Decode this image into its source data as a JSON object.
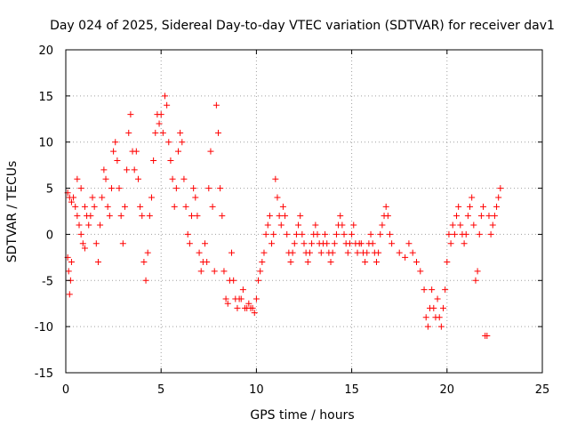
{
  "chart_data": {
    "type": "scatter",
    "title": "Day 024 of 2025, Sidereal Day-to-day VTEC variation (SDTVAR) for receiver dav1",
    "xlabel": "GPS time / hours",
    "ylabel": "SDTVAR / TECUs",
    "xlim": [
      0,
      25
    ],
    "ylim": [
      -15,
      20
    ],
    "xticks": [
      0,
      5,
      10,
      15,
      20,
      25
    ],
    "yticks": [
      -15,
      -10,
      -5,
      0,
      5,
      10,
      15,
      20
    ],
    "grid": true,
    "marker": "+",
    "color": "#ff0000",
    "series": [
      {
        "name": "SDTVAR",
        "points": [
          [
            0.1,
            -2.5
          ],
          [
            0.15,
            -4
          ],
          [
            0.2,
            -6.5
          ],
          [
            0.25,
            -5
          ],
          [
            0.3,
            -3
          ],
          [
            0.1,
            4.5
          ],
          [
            0.2,
            4
          ],
          [
            0.3,
            3.5
          ],
          [
            0.4,
            4
          ],
          [
            0.5,
            3
          ],
          [
            0.6,
            2
          ],
          [
            0.7,
            1
          ],
          [
            0.8,
            0
          ],
          [
            0.9,
            -1
          ],
          [
            1.0,
            -1.5
          ],
          [
            0.6,
            6
          ],
          [
            0.8,
            5
          ],
          [
            1.0,
            3
          ],
          [
            1.1,
            2
          ],
          [
            1.2,
            1
          ],
          [
            1.3,
            2
          ],
          [
            1.4,
            4
          ],
          [
            1.5,
            3
          ],
          [
            1.6,
            -1
          ],
          [
            1.7,
            -3
          ],
          [
            1.8,
            1
          ],
          [
            1.9,
            4
          ],
          [
            2.0,
            7
          ],
          [
            2.1,
            6
          ],
          [
            2.2,
            3
          ],
          [
            2.3,
            2
          ],
          [
            2.4,
            5
          ],
          [
            2.5,
            9
          ],
          [
            2.6,
            10
          ],
          [
            2.7,
            8
          ],
          [
            2.8,
            5
          ],
          [
            2.9,
            2
          ],
          [
            3.0,
            -1
          ],
          [
            3.1,
            3
          ],
          [
            3.2,
            7
          ],
          [
            3.3,
            11
          ],
          [
            3.4,
            13
          ],
          [
            3.5,
            9
          ],
          [
            3.6,
            7
          ],
          [
            3.7,
            9
          ],
          [
            3.8,
            6
          ],
          [
            3.9,
            3
          ],
          [
            4.0,
            2
          ],
          [
            4.1,
            -3
          ],
          [
            4.2,
            -5
          ],
          [
            4.3,
            -2
          ],
          [
            4.4,
            2
          ],
          [
            4.5,
            4
          ],
          [
            4.6,
            8
          ],
          [
            4.7,
            11
          ],
          [
            4.8,
            13
          ],
          [
            4.9,
            12
          ],
          [
            5.0,
            13
          ],
          [
            5.1,
            11
          ],
          [
            5.2,
            15
          ],
          [
            5.3,
            14
          ],
          [
            5.4,
            10
          ],
          [
            5.5,
            8
          ],
          [
            5.6,
            6
          ],
          [
            5.7,
            3
          ],
          [
            5.8,
            5
          ],
          [
            5.9,
            9
          ],
          [
            6.0,
            11
          ],
          [
            6.1,
            10
          ],
          [
            6.2,
            6
          ],
          [
            6.3,
            3
          ],
          [
            6.4,
            0
          ],
          [
            6.5,
            -1
          ],
          [
            6.6,
            2
          ],
          [
            6.7,
            5
          ],
          [
            6.8,
            4
          ],
          [
            6.9,
            2
          ],
          [
            7.0,
            -2
          ],
          [
            7.1,
            -4
          ],
          [
            7.2,
            -3
          ],
          [
            7.3,
            -1
          ],
          [
            7.4,
            -3
          ],
          [
            7.5,
            5
          ],
          [
            7.6,
            9
          ],
          [
            7.7,
            3
          ],
          [
            7.8,
            -4
          ],
          [
            7.9,
            14
          ],
          [
            8.0,
            11
          ],
          [
            8.1,
            5
          ],
          [
            8.2,
            2
          ],
          [
            8.3,
            -4
          ],
          [
            8.4,
            -7
          ],
          [
            8.5,
            -7.5
          ],
          [
            8.6,
            -5
          ],
          [
            8.7,
            -2
          ],
          [
            8.8,
            -5
          ],
          [
            8.9,
            -7
          ],
          [
            9.0,
            -8
          ],
          [
            9.1,
            -7
          ],
          [
            9.2,
            -7
          ],
          [
            9.3,
            -6
          ],
          [
            9.4,
            -8
          ],
          [
            9.5,
            -8
          ],
          [
            9.6,
            -7.5
          ],
          [
            9.7,
            -8
          ],
          [
            9.8,
            -8
          ],
          [
            9.9,
            -8.5
          ],
          [
            10.0,
            -7
          ],
          [
            10.1,
            -5
          ],
          [
            10.2,
            -4
          ],
          [
            10.3,
            -3
          ],
          [
            10.4,
            -2
          ],
          [
            10.5,
            0
          ],
          [
            10.6,
            1
          ],
          [
            10.7,
            2
          ],
          [
            10.8,
            -1
          ],
          [
            10.9,
            0
          ],
          [
            11.0,
            6
          ],
          [
            11.1,
            4
          ],
          [
            11.2,
            2
          ],
          [
            11.3,
            1
          ],
          [
            11.4,
            3
          ],
          [
            11.5,
            2
          ],
          [
            11.6,
            0
          ],
          [
            11.7,
            -2
          ],
          [
            11.8,
            -3
          ],
          [
            11.9,
            -2
          ],
          [
            12.0,
            -1
          ],
          [
            12.1,
            0
          ],
          [
            12.2,
            1
          ],
          [
            12.3,
            2
          ],
          [
            12.4,
            0
          ],
          [
            12.5,
            -1
          ],
          [
            12.6,
            -2
          ],
          [
            12.7,
            -3
          ],
          [
            12.8,
            -2
          ],
          [
            12.9,
            -1
          ],
          [
            13.0,
            0
          ],
          [
            13.1,
            1
          ],
          [
            13.2,
            0
          ],
          [
            13.3,
            -1
          ],
          [
            13.4,
            -2
          ],
          [
            13.5,
            -1
          ],
          [
            13.6,
            0
          ],
          [
            13.7,
            -1
          ],
          [
            13.8,
            -2
          ],
          [
            13.9,
            -3
          ],
          [
            14.0,
            -2
          ],
          [
            14.1,
            -1
          ],
          [
            14.2,
            0
          ],
          [
            14.3,
            1
          ],
          [
            14.4,
            2
          ],
          [
            14.5,
            1
          ],
          [
            14.6,
            0
          ],
          [
            14.7,
            -1
          ],
          [
            14.8,
            -2
          ],
          [
            14.9,
            -1
          ],
          [
            15.0,
            0
          ],
          [
            15.1,
            1
          ],
          [
            15.2,
            -1
          ],
          [
            15.3,
            -2
          ],
          [
            15.4,
            -1
          ],
          [
            15.5,
            -1
          ],
          [
            15.6,
            -2
          ],
          [
            15.7,
            -3
          ],
          [
            15.8,
            -2
          ],
          [
            15.9,
            -1
          ],
          [
            16.0,
            0
          ],
          [
            16.1,
            -1
          ],
          [
            16.2,
            -2
          ],
          [
            16.3,
            -3
          ],
          [
            16.4,
            -2
          ],
          [
            16.5,
            0
          ],
          [
            16.6,
            1
          ],
          [
            16.7,
            2
          ],
          [
            16.8,
            3
          ],
          [
            16.9,
            2
          ],
          [
            17.0,
            0
          ],
          [
            17.1,
            -1
          ],
          [
            17.5,
            -2
          ],
          [
            17.8,
            -2.5
          ],
          [
            18.0,
            -1
          ],
          [
            18.2,
            -2
          ],
          [
            18.4,
            -3
          ],
          [
            18.6,
            -4
          ],
          [
            18.8,
            -6
          ],
          [
            18.9,
            -9
          ],
          [
            19.0,
            -10
          ],
          [
            19.1,
            -8
          ],
          [
            19.2,
            -6
          ],
          [
            19.3,
            -8
          ],
          [
            19.4,
            -9
          ],
          [
            19.5,
            -7
          ],
          [
            19.6,
            -9
          ],
          [
            19.7,
            -10
          ],
          [
            19.8,
            -8
          ],
          [
            19.9,
            -6
          ],
          [
            20.0,
            -3
          ],
          [
            20.1,
            0
          ],
          [
            20.2,
            -1
          ],
          [
            20.3,
            1
          ],
          [
            20.4,
            0
          ],
          [
            20.5,
            2
          ],
          [
            20.6,
            3
          ],
          [
            20.7,
            1
          ],
          [
            20.8,
            0
          ],
          [
            20.9,
            -1
          ],
          [
            21.0,
            0
          ],
          [
            21.1,
            2
          ],
          [
            21.2,
            3
          ],
          [
            21.3,
            4
          ],
          [
            21.4,
            1
          ],
          [
            21.5,
            -5
          ],
          [
            21.6,
            -4
          ],
          [
            21.7,
            0
          ],
          [
            21.8,
            2
          ],
          [
            21.9,
            3
          ],
          [
            22.0,
            -11
          ],
          [
            22.1,
            -11
          ],
          [
            22.2,
            2
          ],
          [
            22.3,
            0
          ],
          [
            22.4,
            1
          ],
          [
            22.5,
            2
          ],
          [
            22.6,
            3
          ],
          [
            22.7,
            4
          ],
          [
            22.8,
            5
          ]
        ]
      }
    ]
  }
}
